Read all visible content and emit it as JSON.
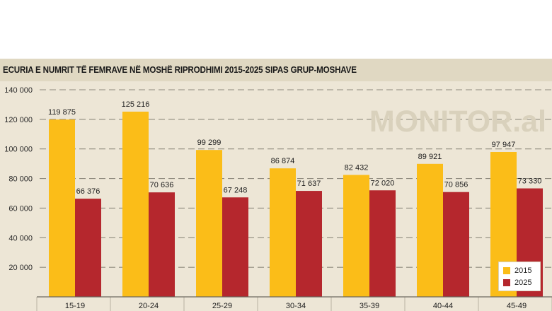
{
  "chart_data": {
    "type": "bar",
    "title": "ECURIA E NUMRIT TË FEMRAVE NË MOSHË RIPRODHIMI 2015-2025 SIPAS GRUP-MOSHAVE",
    "watermark": "MONITOR.al",
    "categories": [
      "15-19",
      "20-24",
      "25-29",
      "30-34",
      "35-39",
      "40-44",
      "45-49"
    ],
    "series": [
      {
        "name": "2015",
        "color": "#fbbd18",
        "values": [
          119875,
          125216,
          99299,
          86874,
          82432,
          89921,
          97947
        ],
        "labels": [
          "119 875",
          "125 216",
          "99 299",
          "86 874",
          "82 432",
          "89 921",
          "97 947"
        ]
      },
      {
        "name": "2025",
        "color": "#b5272d",
        "values": [
          66376,
          70636,
          67248,
          71637,
          72020,
          70856,
          73330
        ],
        "labels": [
          "66 376",
          "70 636",
          "67 248",
          "71 637",
          "72 020",
          "70 856",
          "73 330"
        ]
      }
    ],
    "y_ticks": [
      20000,
      40000,
      60000,
      80000,
      100000,
      120000,
      140000
    ],
    "y_tick_labels": [
      "20 000",
      "40 000",
      "60 000",
      "80 000",
      "100 000",
      "120 000",
      "140 000"
    ],
    "ylim": [
      0,
      140000
    ],
    "grid": true,
    "legend_position": "bottom-right"
  }
}
